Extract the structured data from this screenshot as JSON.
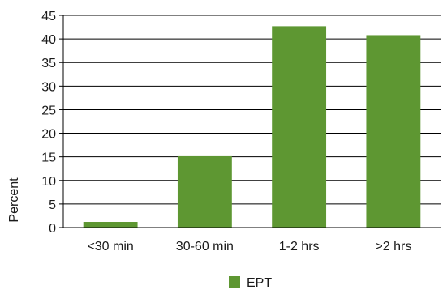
{
  "chart_data": {
    "type": "bar",
    "categories": [
      "<30 min",
      "30-60 min",
      "1-2 hrs",
      ">2 hrs"
    ],
    "series": [
      {
        "name": "EPT",
        "values": [
          1.2,
          15.3,
          42.7,
          40.8
        ]
      }
    ],
    "ylabel": "Percent",
    "xlabel": "",
    "ylim": [
      0,
      45
    ],
    "yticks": [
      0,
      5,
      10,
      15,
      20,
      25,
      30,
      35,
      40,
      45
    ],
    "grid": true,
    "legend": "bottom-center",
    "colors": {
      "bar": "#5e9732",
      "grid": "#000000",
      "axis": "#000000"
    }
  }
}
